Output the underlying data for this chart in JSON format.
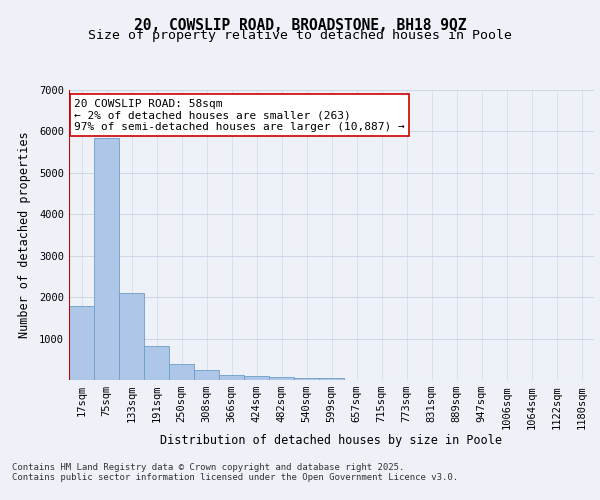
{
  "title": "20, COWSLIP ROAD, BROADSTONE, BH18 9QZ",
  "subtitle": "Size of property relative to detached houses in Poole",
  "xlabel": "Distribution of detached houses by size in Poole",
  "ylabel": "Number of detached properties",
  "categories": [
    "17sqm",
    "75sqm",
    "133sqm",
    "191sqm",
    "250sqm",
    "308sqm",
    "366sqm",
    "424sqm",
    "482sqm",
    "540sqm",
    "599sqm",
    "657sqm",
    "715sqm",
    "773sqm",
    "831sqm",
    "889sqm",
    "947sqm",
    "1006sqm",
    "1064sqm",
    "1122sqm",
    "1180sqm"
  ],
  "values": [
    1780,
    5830,
    2100,
    820,
    390,
    240,
    130,
    100,
    80,
    60,
    50,
    0,
    0,
    0,
    0,
    0,
    0,
    0,
    0,
    0,
    0
  ],
  "bar_color": "#aec6e8",
  "bar_edge_color": "#6a9fc8",
  "vline_color": "#cc0000",
  "annotation_text": "20 COWSLIP ROAD: 58sqm\n← 2% of detached houses are smaller (263)\n97% of semi-detached houses are larger (10,887) →",
  "annotation_box_facecolor": "#ffffff",
  "annotation_box_edgecolor": "#cc0000",
  "ylim": [
    0,
    7000
  ],
  "yticks": [
    0,
    1000,
    2000,
    3000,
    4000,
    5000,
    6000,
    7000
  ],
  "grid_color": "#d0d8e8",
  "background_color": "#eef2f8",
  "footer_text": "Contains HM Land Registry data © Crown copyright and database right 2025.\nContains public sector information licensed under the Open Government Licence v3.0.",
  "title_fontsize": 10.5,
  "subtitle_fontsize": 9.5,
  "axis_label_fontsize": 8.5,
  "tick_fontsize": 7.5,
  "annotation_fontsize": 8,
  "footer_fontsize": 6.5
}
